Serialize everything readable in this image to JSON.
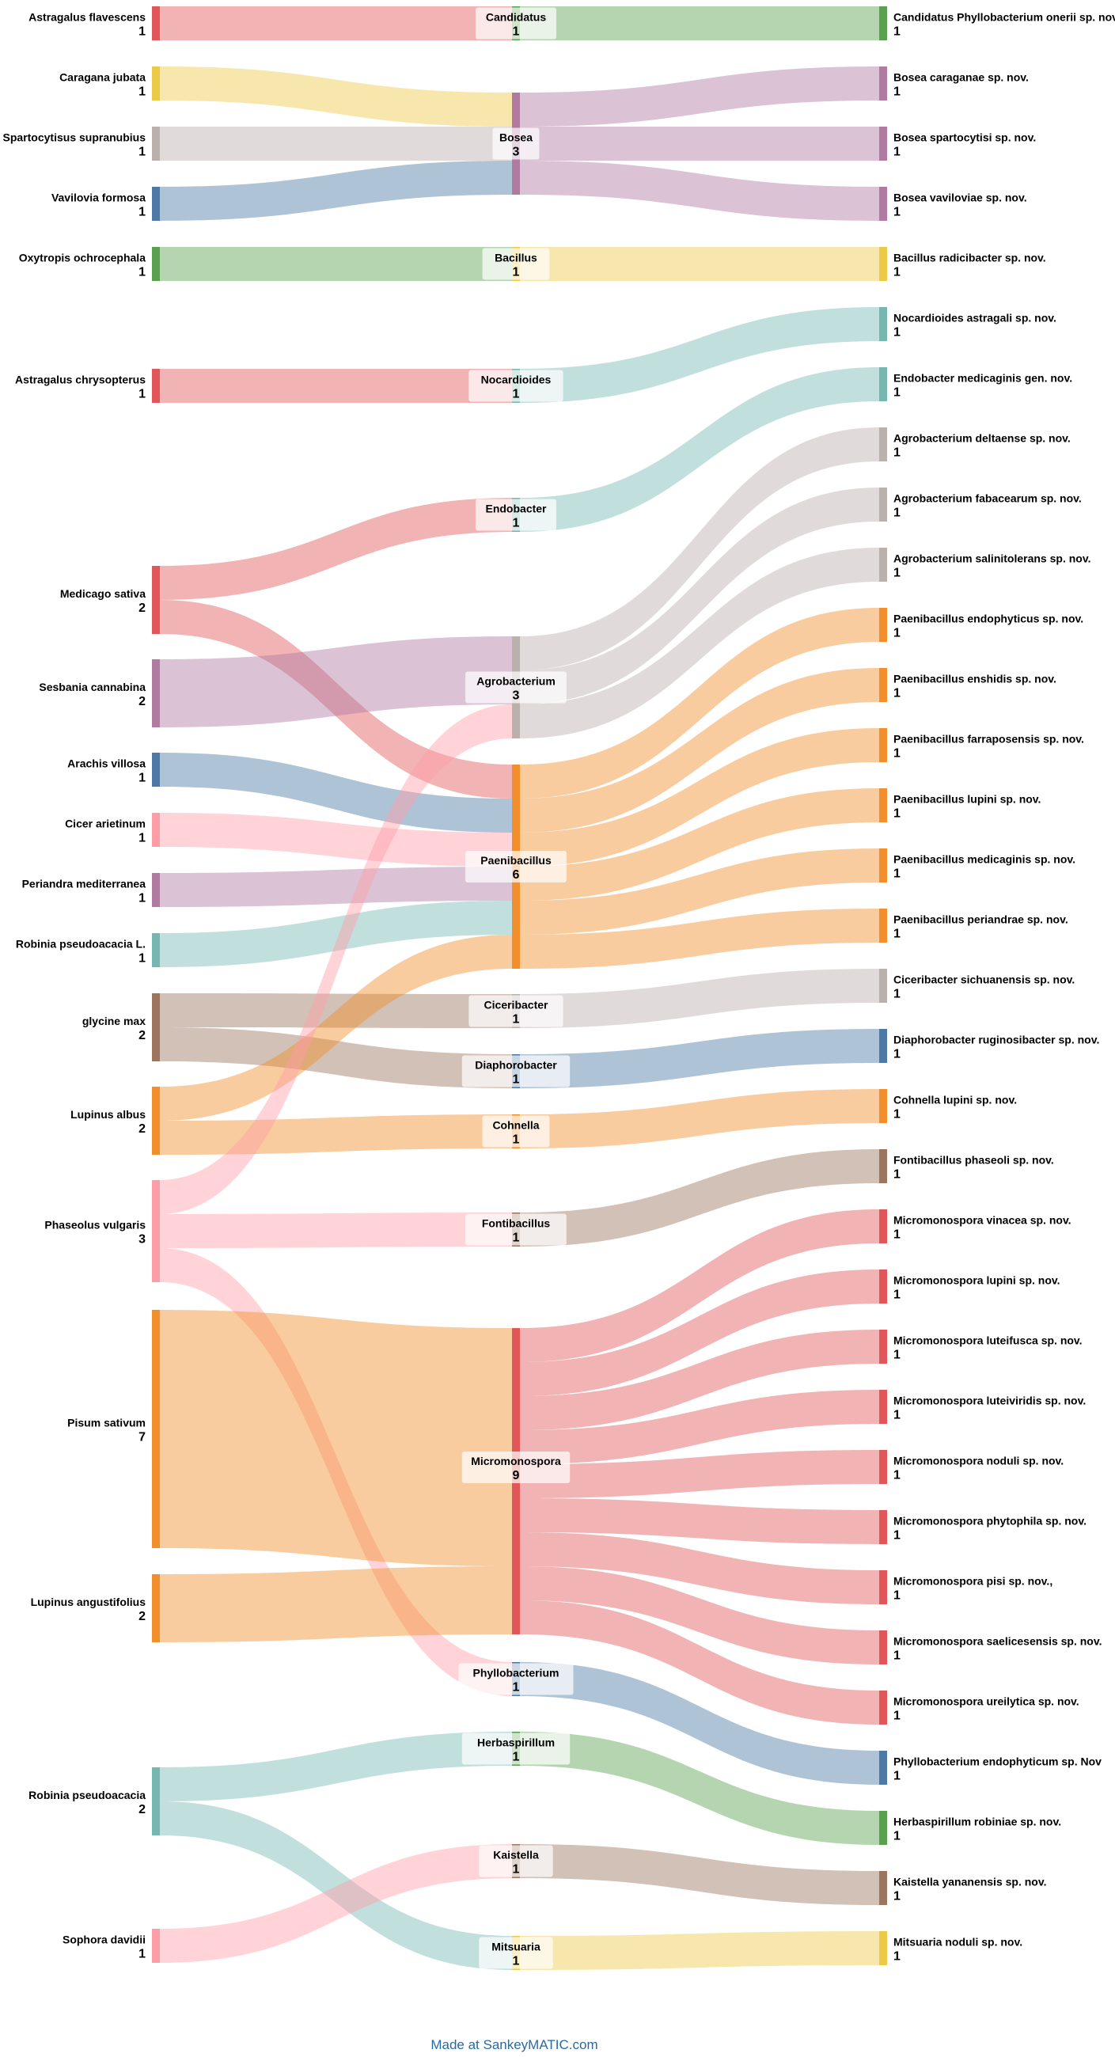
{
  "chart_data": {
    "type": "sankey",
    "credit": "Made at SankeyMATIC.com",
    "palette": {
      "red": "#e15759",
      "yellow": "#edc948",
      "grey": "#bab0ac",
      "blue": "#4e79a7",
      "green": "#59a14f",
      "teal": "#76b7b2",
      "purple": "#b07aa1",
      "pink": "#ff9da7",
      "brown": "#9c755f",
      "orange": "#f28e2b"
    },
    "hosts": [
      {
        "name": "Astragalus flavescens",
        "value": 1,
        "color": "red"
      },
      {
        "name": "Caragana jubata",
        "value": 1,
        "color": "yellow"
      },
      {
        "name": "Spartocytisus supranubius",
        "value": 1,
        "color": "grey"
      },
      {
        "name": "Vavilovia formosa",
        "value": 1,
        "color": "blue"
      },
      {
        "name": "Oxytropis ochrocephala",
        "value": 1,
        "color": "green"
      },
      {
        "name": "Astragalus chrysopterus",
        "value": 1,
        "color": "red"
      },
      {
        "name": "Medicago sativa",
        "value": 2,
        "color": "red"
      },
      {
        "name": "Sesbania cannabina",
        "value": 2,
        "color": "purple"
      },
      {
        "name": "Arachis villosa",
        "value": 1,
        "color": "blue"
      },
      {
        "name": "Cicer arietinum",
        "value": 1,
        "color": "pink"
      },
      {
        "name": "Periandra mediterranea",
        "value": 1,
        "color": "purple"
      },
      {
        "name": "Robinia pseudoacacia L.",
        "value": 1,
        "color": "teal"
      },
      {
        "name": "glycine max",
        "value": 2,
        "color": "brown"
      },
      {
        "name": "Lupinus albus",
        "value": 2,
        "color": "orange"
      },
      {
        "name": "Phaseolus vulgaris",
        "value": 3,
        "color": "pink"
      },
      {
        "name": "Pisum sativum",
        "value": 7,
        "color": "orange"
      },
      {
        "name": "Lupinus angustifolius",
        "value": 2,
        "color": "orange"
      },
      {
        "name": "Robinia pseudoacacia",
        "value": 2,
        "color": "teal"
      },
      {
        "name": "Sophora davidii",
        "value": 1,
        "color": "pink"
      }
    ],
    "genera": [
      {
        "name": "Candidatus",
        "value": 1,
        "color": "green"
      },
      {
        "name": "Bosea",
        "value": 3,
        "color": "purple"
      },
      {
        "name": "Bacillus",
        "value": 1,
        "color": "yellow"
      },
      {
        "name": "Nocardioides",
        "value": 1,
        "color": "teal"
      },
      {
        "name": "Endobacter",
        "value": 1,
        "color": "teal"
      },
      {
        "name": "Agrobacterium",
        "value": 3,
        "color": "grey"
      },
      {
        "name": "Paenibacillus",
        "value": 6,
        "color": "orange"
      },
      {
        "name": "Ciceribacter",
        "value": 1,
        "color": "grey"
      },
      {
        "name": "Diaphorobacter",
        "value": 1,
        "color": "blue"
      },
      {
        "name": "Cohnella",
        "value": 1,
        "color": "orange"
      },
      {
        "name": "Fontibacillus",
        "value": 1,
        "color": "brown"
      },
      {
        "name": "Micromonospora",
        "value": 9,
        "color": "red"
      },
      {
        "name": "Phyllobacterium",
        "value": 1,
        "color": "blue"
      },
      {
        "name": "Herbaspirillum",
        "value": 1,
        "color": "green"
      },
      {
        "name": "Kaistella",
        "value": 1,
        "color": "brown"
      },
      {
        "name": "Mitsuaria",
        "value": 1,
        "color": "yellow"
      }
    ],
    "species": [
      {
        "name": "Candidatus Phyllobacterium onerii sp. nov.",
        "value": 1,
        "color": "green"
      },
      {
        "name": "Bosea caraganae sp. nov.",
        "value": 1,
        "color": "purple"
      },
      {
        "name": "Bosea spartocytisi sp. nov.",
        "value": 1,
        "color": "purple"
      },
      {
        "name": "Bosea vaviloviae sp. nov.",
        "value": 1,
        "color": "purple"
      },
      {
        "name": "Bacillus radicibacter sp. nov.",
        "value": 1,
        "color": "yellow"
      },
      {
        "name": "Nocardioides astragali sp. nov.",
        "value": 1,
        "color": "teal"
      },
      {
        "name": "Endobacter medicaginis gen. nov.",
        "value": 1,
        "color": "teal"
      },
      {
        "name": "Agrobacterium deltaense sp. nov.",
        "value": 1,
        "color": "grey"
      },
      {
        "name": "Agrobacterium fabacearum sp. nov.",
        "value": 1,
        "color": "grey"
      },
      {
        "name": "Agrobacterium salinitolerans sp. nov.",
        "value": 1,
        "color": "grey"
      },
      {
        "name": "Paenibacillus endophyticus sp. nov.",
        "value": 1,
        "color": "orange"
      },
      {
        "name": "Paenibacillus enshidis sp. nov.",
        "value": 1,
        "color": "orange"
      },
      {
        "name": "Paenibacillus farraposensis sp. nov.",
        "value": 1,
        "color": "orange"
      },
      {
        "name": "Paenibacillus lupini sp. nov.",
        "value": 1,
        "color": "orange"
      },
      {
        "name": "Paenibacillus medicaginis sp. nov.",
        "value": 1,
        "color": "orange"
      },
      {
        "name": "Paenibacillus periandrae sp. nov.",
        "value": 1,
        "color": "orange"
      },
      {
        "name": "Ciceribacter sichuanensis sp. nov.",
        "value": 1,
        "color": "grey"
      },
      {
        "name": "Diaphorobacter ruginosibacter sp. nov.",
        "value": 1,
        "color": "blue"
      },
      {
        "name": "Cohnella lupini sp. nov.",
        "value": 1,
        "color": "orange"
      },
      {
        "name": "Fontibacillus phaseoli sp. nov.",
        "value": 1,
        "color": "brown"
      },
      {
        "name": "Micromonospora vinacea sp. nov.",
        "value": 1,
        "color": "red"
      },
      {
        "name": "Micromonospora lupini sp. nov.",
        "value": 1,
        "color": "red"
      },
      {
        "name": "Micromonospora luteifusca sp. nov.",
        "value": 1,
        "color": "red"
      },
      {
        "name": "Micromonospora luteiviridis sp. nov.",
        "value": 1,
        "color": "red"
      },
      {
        "name": "Micromonospora noduli sp. nov.",
        "value": 1,
        "color": "red"
      },
      {
        "name": "Micromonospora phytophila sp. nov.",
        "value": 1,
        "color": "red"
      },
      {
        "name": "Micromonospora pisi sp. nov.,",
        "value": 1,
        "color": "red"
      },
      {
        "name": "Micromonospora saelicesensis sp. nov.",
        "value": 1,
        "color": "red"
      },
      {
        "name": "Micromonospora ureilytica sp. nov.",
        "value": 1,
        "color": "red"
      },
      {
        "name": "Phyllobacterium endophyticum sp. Nov",
        "value": 1,
        "color": "blue"
      },
      {
        "name": "Herbaspirillum robiniae sp. nov.",
        "value": 1,
        "color": "green"
      },
      {
        "name": "Kaistella yananensis sp. nov.",
        "value": 1,
        "color": "brown"
      },
      {
        "name": "Mitsuaria noduli sp. nov.",
        "value": 1,
        "color": "yellow"
      }
    ],
    "flows_host_to_genus": [
      [
        "Astragalus flavescens",
        "Candidatus",
        1
      ],
      [
        "Caragana jubata",
        "Bosea",
        1
      ],
      [
        "Spartocytisus supranubius",
        "Bosea",
        1
      ],
      [
        "Vavilovia formosa",
        "Bosea",
        1
      ],
      [
        "Oxytropis ochrocephala",
        "Bacillus",
        1
      ],
      [
        "Astragalus chrysopterus",
        "Nocardioides",
        1
      ],
      [
        "Medicago sativa",
        "Endobacter",
        1
      ],
      [
        "Medicago sativa",
        "Paenibacillus",
        1
      ],
      [
        "Sesbania cannabina",
        "Agrobacterium",
        2
      ],
      [
        "Arachis villosa",
        "Paenibacillus",
        1
      ],
      [
        "Cicer arietinum",
        "Paenibacillus",
        1
      ],
      [
        "Periandra mediterranea",
        "Paenibacillus",
        1
      ],
      [
        "Robinia pseudoacacia L.",
        "Paenibacillus",
        1
      ],
      [
        "glycine max",
        "Ciceribacter",
        1
      ],
      [
        "glycine max",
        "Diaphorobacter",
        1
      ],
      [
        "Lupinus albus",
        "Paenibacillus",
        1
      ],
      [
        "Lupinus albus",
        "Cohnella",
        1
      ],
      [
        "Phaseolus vulgaris",
        "Agrobacterium",
        1
      ],
      [
        "Phaseolus vulgaris",
        "Fontibacillus",
        1
      ],
      [
        "Phaseolus vulgaris",
        "Phyllobacterium",
        1
      ],
      [
        "Pisum sativum",
        "Micromonospora",
        7
      ],
      [
        "Lupinus angustifolius",
        "Micromonospora",
        2
      ],
      [
        "Robinia pseudoacacia",
        "Herbaspirillum",
        1
      ],
      [
        "Robinia pseudoacacia",
        "Mitsuaria",
        1
      ],
      [
        "Sophora davidii",
        "Kaistella",
        1
      ]
    ]
  }
}
